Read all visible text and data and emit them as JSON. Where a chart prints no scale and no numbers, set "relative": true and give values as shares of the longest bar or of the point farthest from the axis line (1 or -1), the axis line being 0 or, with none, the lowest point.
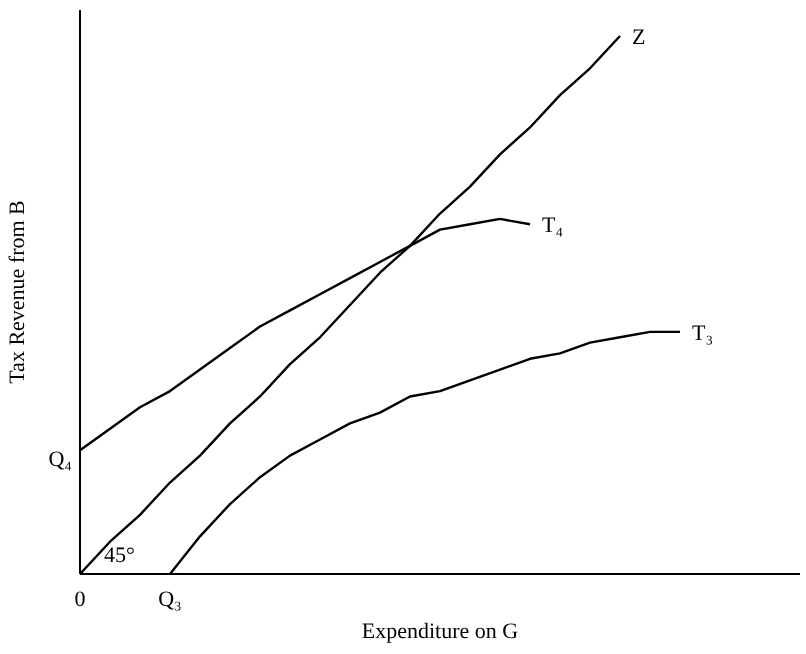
{
  "chart_data": {
    "type": "line",
    "relative": true,
    "xlabel": "Expenditure on G",
    "ylabel": "Tax Revenue from B",
    "tick_labels": "x",
    "marker": "none",
    "line_style": "solid",
    "categories": [
      "0",
      null,
      null,
      "Q₃",
      null,
      null,
      null,
      null,
      null,
      null,
      null,
      null,
      null,
      null,
      null,
      null,
      null,
      null,
      null,
      null,
      null,
      null,
      null,
      null,
      null
    ],
    "series": [
      {
        "name": "Z",
        "color": "#000000",
        "values": [
          0,
          0.06,
          0.11,
          0.17,
          0.22,
          0.28,
          0.33,
          0.39,
          0.44,
          0.5,
          0.56,
          0.61,
          0.67,
          0.72,
          0.78,
          0.83,
          0.89,
          0.94,
          1,
          null,
          null,
          null,
          null,
          null,
          null
        ]
      },
      {
        "name": "T₄",
        "color": "#000000",
        "values": [
          0.23,
          0.27,
          0.31,
          0.34,
          0.38,
          0.42,
          0.46,
          0.49,
          0.52,
          0.55,
          0.58,
          0.61,
          0.64,
          0.65,
          0.66,
          0.65,
          null,
          null,
          null,
          null,
          null,
          null,
          null,
          null,
          null
        ]
      },
      {
        "name": "T₃",
        "color": "#000000",
        "values": [
          null,
          null,
          null,
          0,
          0.07,
          0.13,
          0.18,
          0.22,
          0.25,
          0.28,
          0.3,
          0.33,
          0.34,
          0.36,
          0.38,
          0.4,
          0.41,
          0.43,
          0.44,
          0.45,
          0.45,
          null,
          null,
          null,
          null
        ]
      }
    ],
    "annotations": [
      {
        "text": "Q₄",
        "x": "0",
        "y": 0.23
      },
      "45°"
    ]
  }
}
